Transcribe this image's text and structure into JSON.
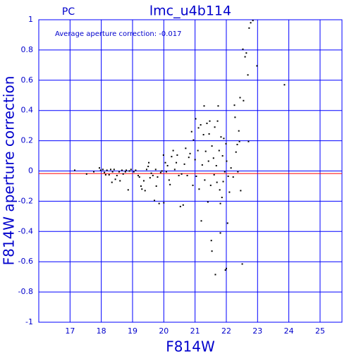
{
  "chart_data": {
    "type": "scatter",
    "title": "lmc_u4b114",
    "label": "PC",
    "annotation": "Average aperture correction:  -0.017",
    "xlabel": "F814W",
    "ylabel": "F814W aperture correction",
    "xlim": [
      16,
      25.7
    ],
    "ylim": [
      -1,
      1
    ],
    "xticks": [
      17,
      18,
      19,
      20,
      21,
      22,
      23,
      24,
      25
    ],
    "yticks": [
      -1,
      -0.8,
      -0.6,
      -0.4,
      -0.2,
      0,
      0.2,
      0.4,
      0.6,
      0.8,
      1
    ],
    "grid": true,
    "grid_color": "#0000ff",
    "text_color": "#0000cc",
    "reference_line": {
      "value": -0.017,
      "color": "#ff0000"
    },
    "x": [
      17.15,
      17.53,
      17.76,
      17.94,
      17.98,
      18.05,
      18.1,
      18.14,
      18.18,
      18.25,
      18.3,
      18.34,
      18.36,
      18.41,
      18.45,
      18.5,
      18.57,
      18.6,
      18.66,
      18.7,
      18.77,
      18.8,
      18.86,
      18.9,
      18.95,
      19.04,
      19.1,
      19.18,
      19.22,
      19.27,
      19.3,
      19.36,
      19.4,
      19.45,
      19.5,
      19.52,
      19.56,
      19.6,
      19.65,
      19.7,
      19.74,
      19.76,
      19.8,
      19.85,
      19.9,
      19.94,
      19.99,
      20.0,
      20.05,
      20.08,
      20.12,
      20.17,
      20.2,
      20.25,
      20.3,
      20.35,
      20.4,
      20.43,
      20.48,
      20.53,
      20.57,
      20.62,
      20.66,
      20.7,
      20.75,
      20.8,
      20.84,
      20.89,
      20.93,
      20.95,
      21.0,
      21.02,
      21.04,
      21.09,
      21.11,
      21.13,
      21.18,
      21.2,
      21.23,
      21.27,
      21.29,
      21.31,
      21.34,
      21.38,
      21.41,
      21.43,
      21.45,
      21.47,
      21.5,
      21.52,
      21.54,
      21.59,
      21.61,
      21.63,
      21.65,
      21.68,
      21.7,
      21.72,
      21.74,
      21.77,
      21.79,
      21.81,
      21.83,
      21.86,
      21.88,
      21.9,
      21.92,
      21.95,
      21.97,
      21.99,
      22.01,
      22.04,
      22.06,
      22.1,
      22.15,
      22.22,
      22.26,
      22.28,
      22.31,
      22.35,
      22.37,
      22.4,
      22.42,
      22.44,
      22.46,
      22.51,
      22.53,
      22.55,
      22.6,
      22.64,
      22.69,
      22.71,
      22.73,
      22.78,
      22.85,
      22.98,
      23.86,
      21.81,
      21.54,
      22.0
    ],
    "series": [
      {
        "color": "#000000",
        "values": [
          0.005,
          -0.02,
          -0.005,
          0.02,
          0.005,
          0.01,
          -0.01,
          -0.025,
          0.005,
          -0.025,
          0.01,
          -0.075,
          -0.005,
          0.01,
          -0.055,
          -0.03,
          -0.005,
          -0.065,
          0.005,
          -0.02,
          -0.005,
          0.005,
          -0.125,
          0,
          0.01,
          -0.005,
          0.005,
          -0.03,
          -0.04,
          -0.1,
          -0.12,
          -0.065,
          -0.13,
          0.01,
          0.03,
          0.055,
          -0.045,
          -0.015,
          -0.03,
          -0.195,
          0.01,
          -0.1,
          -0.04,
          -0.215,
          -0.01,
          0,
          0.105,
          -0.21,
          0.055,
          -0.005,
          0.035,
          -0.06,
          -0.09,
          0.095,
          0.135,
          0.01,
          0.055,
          0.105,
          -0.03,
          -0.235,
          -0.02,
          -0.225,
          0.045,
          0.15,
          -0.03,
          0.09,
          0.115,
          0.26,
          -0.095,
          0.205,
          0.075,
          0.345,
          -0.035,
          0.135,
          0.285,
          -0.12,
          0.305,
          -0.33,
          0.04,
          0.24,
          0.43,
          -0.06,
          0.13,
          0.315,
          -0.205,
          0.065,
          0.245,
          0.33,
          -0.095,
          -0.46,
          0.165,
          0.085,
          -0.025,
          0.29,
          -0.685,
          0.035,
          -0.075,
          0.33,
          0.43,
          0.135,
          -0.125,
          -0.215,
          0.225,
          -0.175,
          0.1,
          -0.07,
          0.215,
          -0.005,
          -0.655,
          0.18,
          0.065,
          -0.345,
          -0.035,
          -0.14,
          0.02,
          -0.04,
          0.435,
          0.355,
          0.125,
          0.175,
          -0.005,
          0.265,
          0.195,
          0.485,
          -0.13,
          -0.615,
          0.805,
          0.465,
          0.755,
          0.78,
          0.635,
          0.195,
          0.945,
          0.98,
          0.995,
          0.695,
          0.57,
          -0.41,
          -0.53,
          -0.645
        ]
      }
    ]
  }
}
